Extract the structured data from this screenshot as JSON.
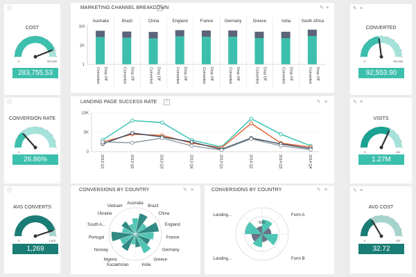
{
  "colors": {
    "teal": "#3dbfad",
    "teal_dark": "#1a7d75",
    "teal_light": "#a6e2da",
    "gray_bar": "#5b6478",
    "line_cyan": "#2ec0b0",
    "line_orange": "#e15a27",
    "line_navy": "#34495e",
    "line_gray": "#8d9aa3",
    "panel": "#ffffff",
    "bg": "#ececec"
  },
  "gauges": {
    "cost": {
      "title": "COST",
      "value": "283,755.53",
      "min": "0",
      "max": "320,000",
      "level": 0.88,
      "color": "#3dbfad",
      "light": "#a6e2da"
    },
    "conversion_rate": {
      "title": "CONVERSION RATE",
      "value": "26.86%",
      "min": "0",
      "max": "",
      "level": 0.27,
      "color": "#3dbfad",
      "light": "#a6e2da"
    },
    "avg_converts": {
      "title": "AVG CONVERTS",
      "value": "1,269",
      "min": "0",
      "max": "1,400",
      "level": 0.9,
      "color": "#1a7d75",
      "light": "#a6d4cc"
    },
    "converted": {
      "title": "CONVERTED",
      "value": "92,553.90",
      "min": "0",
      "max": "200,000",
      "level": 0.46,
      "color": "#3dbfad",
      "light": "#a6e2da"
    },
    "visits": {
      "title": "VISITS",
      "value": "1.27M",
      "min": "0",
      "max": "2M",
      "level": 0.64,
      "color": "#1aa394",
      "light": "#a6e2da"
    },
    "avg_cost": {
      "title": "AVG COST",
      "value": "32.72",
      "min": "0",
      "max": "100",
      "level": 0.33,
      "color": "#1a7d75",
      "light": "#a6d4cc"
    }
  },
  "marketing": {
    "title": "MARKETING CHANNEL BREAKDOWN",
    "chart_data": {
      "type": "bar",
      "title": "MARKETING CHANNEL BREAKDOWN",
      "categories": [
        "Australia",
        "Brazil",
        "China",
        "England",
        "France",
        "Germany",
        "Greece",
        "India",
        "South Africa"
      ],
      "sub_labels": [
        "Converted",
        "Drop Off"
      ],
      "y_ticks": [
        "1M",
        "1K",
        "1"
      ],
      "scale": "log",
      "series": [
        {
          "name": "Converted",
          "values": [
            20000,
            15000,
            12000,
            25000,
            22000,
            22000,
            14000,
            14000,
            30000
          ]
        },
        {
          "name": "Drop Off",
          "values": [
            200000,
            150000,
            130000,
            250000,
            220000,
            220000,
            140000,
            140000,
            300000
          ]
        }
      ]
    }
  },
  "landing": {
    "title": "LANDING PAGE SUCCESS RATE",
    "chart_data": {
      "type": "line",
      "title": "LANDING PAGE SUCCESS RATE",
      "x": [
        "2013 Q1",
        "2013 Q2",
        "2013 Q3",
        "2013 Q4",
        "2014 Q1",
        "2014 Q2",
        "2014 Q3",
        "2014 Q4"
      ],
      "y_ticks": [
        "10K",
        "5K",
        "0"
      ],
      "ylim": [
        0,
        10000
      ],
      "series": [
        {
          "values": [
            3000,
            8000,
            7500,
            3000,
            1200,
            8500,
            4500,
            1500
          ]
        },
        {
          "values": [
            2500,
            4500,
            4200,
            2200,
            1000,
            7300,
            2200,
            1200
          ]
        },
        {
          "values": [
            2000,
            4800,
            3800,
            2500,
            600,
            3500,
            2000,
            800
          ]
        },
        {
          "values": [
            2500,
            2300,
            3500,
            1500,
            400,
            3300,
            1500,
            500
          ]
        }
      ]
    }
  },
  "conv1": {
    "title": "CONVERSIONS BY COUNTRY",
    "chart_data": {
      "type": "polar",
      "categories": [
        "Australia",
        "Brazil",
        "China",
        "England",
        "France",
        "Germany",
        "Greece",
        "India",
        "Kazakhstan",
        "Nigeria",
        "Norway",
        "Portugal",
        "South A...",
        "Ukraine",
        "Vietnam"
      ],
      "values": [
        0.6,
        0.8,
        0.5,
        0.9,
        0.7,
        0.6,
        0.8,
        0.5,
        0.4,
        0.7,
        0.6,
        0.9,
        0.5,
        0.6,
        0.4
      ]
    }
  },
  "conv2": {
    "title": "CONVERSIONS BY COUNTRY",
    "chart_data": {
      "type": "polar",
      "labels": [
        "Landing...",
        "Form A",
        "Form B",
        "Landing..."
      ],
      "tick": "50K"
    }
  }
}
